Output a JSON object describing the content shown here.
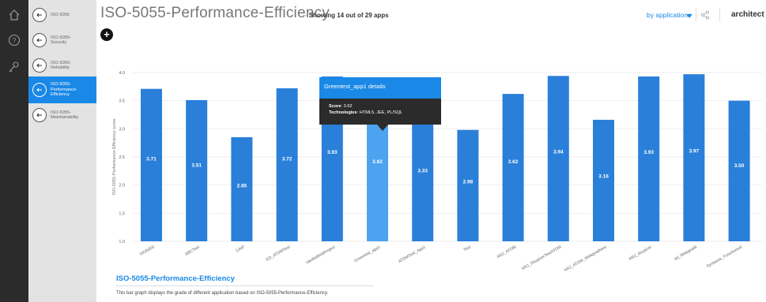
{
  "rail": {
    "icons": [
      "home-icon",
      "help-icon",
      "key-icon"
    ]
  },
  "sidebar": {
    "items": [
      {
        "label": "ISO-5055",
        "active": false,
        "icon": "back-arrow-icon"
      },
      {
        "label": "ISO-5055-\nSecurity",
        "active": false,
        "icon": "back-arrow-icon"
      },
      {
        "label": "ISO-5055-\nReliability",
        "active": false,
        "icon": "back-arrow-icon"
      },
      {
        "label": "ISO-5055-\nPerformance-\nEfficiency",
        "active": true,
        "icon": "back-arrow-icon"
      },
      {
        "label": "ISO-5055-\nMaintainability",
        "active": false,
        "icon": "back-arrow-icon"
      }
    ]
  },
  "header": {
    "title": "ISO-5055-Performance-Efficiency",
    "subtitle_dash": "-",
    "subtitle": "Showing 14 out of 29 apps",
    "add_label": "+",
    "view_select": "by applications",
    "user": "architect",
    "accent": "#1a88e6"
  },
  "tooltip": {
    "title": "Greentest_app1 details",
    "score_label": "Score",
    "score_value": ": 3.62",
    "tech_label": "Technologies",
    "tech_value": ": HTML5, JEE, PL/SQL"
  },
  "chart_data": {
    "type": "bar",
    "categories": [
      "ISO5055",
      "ABCTest",
      "CAIP",
      "ED_ATDMTest",
      "VanillaWebProject",
      "Greentest_app1",
      "ATDMTest_App1",
      "Test",
      "ARJ_ATDM",
      "ARJ_ShopizerTestATDM",
      "ARJ_ATDM_WebgoatNew",
      "ARJ_shopizer",
      "arj_Webgoat8",
      "Syntaxes_Fonctionnel"
    ],
    "values": [
      3.71,
      3.51,
      2.85,
      3.72,
      3.93,
      3.62,
      3.33,
      2.98,
      3.62,
      3.94,
      3.16,
      3.93,
      3.97,
      3.5
    ],
    "value_labels": [
      "3.71",
      "3.51",
      "2.85",
      "3.72",
      "3.93",
      "3.62",
      "3.33",
      "2.98",
      "3.62",
      "3.94",
      "3.16",
      "3.93",
      "3.97",
      "3.50"
    ],
    "highlighted": "Greentest_app1",
    "ylabel": "ISO-5055-Performance-Efficiency score",
    "ylim": [
      1.0,
      4.0
    ],
    "yticks": [
      "1.0",
      "1.5",
      "2.0",
      "2.5",
      "3.0",
      "3.5",
      "4.0"
    ],
    "grid": true,
    "bar_color": "#2a7fd9",
    "highlight_color": "#4da3f0"
  },
  "description": {
    "title": "ISO-5055-Performance-Efficiency",
    "text": "This bar graph displays the grade of different application based on ISO-5055-Performance-Efficiency."
  }
}
